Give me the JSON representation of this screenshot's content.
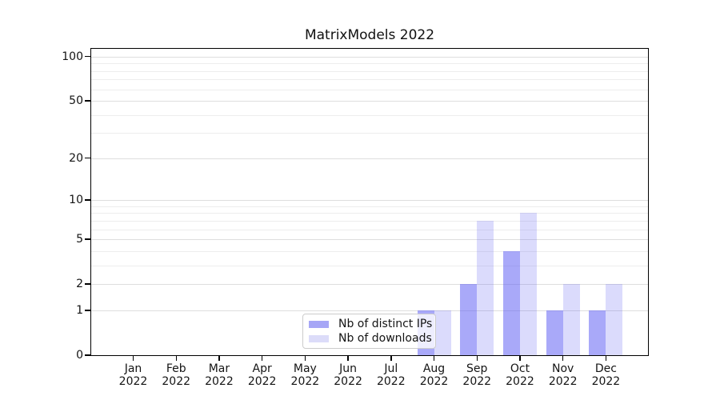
{
  "chart_data": {
    "type": "bar",
    "title": "MatrixModels 2022",
    "categories": [
      "Jan",
      "Feb",
      "Mar",
      "Apr",
      "May",
      "Jun",
      "Jul",
      "Aug",
      "Sep",
      "Oct",
      "Nov",
      "Dec"
    ],
    "year_label": "2022",
    "series": [
      {
        "name": "Nb of distinct IPs",
        "values": [
          0,
          0,
          0,
          0,
          0,
          0,
          0,
          1,
          2,
          4,
          1,
          1
        ],
        "color": "rgba(98,98,244,0.55)",
        "legend_color": "#a6a6f6"
      },
      {
        "name": "Nb of downloads",
        "values": [
          0,
          0,
          0,
          0,
          0,
          0,
          0,
          1,
          7,
          8,
          2,
          2
        ],
        "color": "rgba(98,98,244,0.23)",
        "legend_color": "#dcdcf9"
      }
    ],
    "xlabel": "",
    "ylabel": "",
    "yscale": "log1p",
    "ylim": [
      0,
      112
    ],
    "yticks": [
      0,
      1,
      2,
      5,
      10,
      20,
      50,
      100
    ],
    "ytick_labels": [
      "0",
      "1",
      "2",
      "5",
      "10",
      "20",
      "50",
      "100"
    ],
    "yticks_minor": [
      3,
      4,
      6,
      7,
      8,
      9,
      30,
      40,
      60,
      70,
      80,
      90
    ],
    "grid": true,
    "legend_position": "inside lower-center",
    "colors": {
      "bar_dark_on_white": "#aaaaf8",
      "bar_light_on_white": "#dbdbf9",
      "grid_major": "#dedede",
      "grid_minor": "#ededed",
      "spine": "#000000",
      "text": "#141414",
      "legend_border": "#cccccc"
    }
  }
}
